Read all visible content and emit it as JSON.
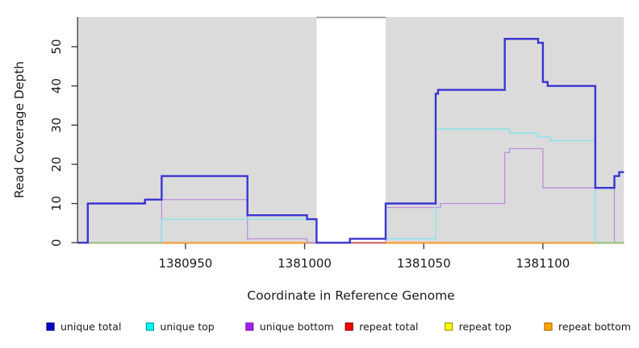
{
  "chart_data": {
    "type": "line",
    "subtype": "step-coverage",
    "title": "",
    "xlabel": "Coordinate in Reference Genome",
    "ylabel": "Read Coverage Depth",
    "x_domain": [
      1380905,
      1381134
    ],
    "y_domain": [
      0,
      57.6
    ],
    "x_ticks": [
      1380950,
      1381000,
      1381050,
      1381100
    ],
    "y_ticks": [
      0,
      10,
      20,
      30,
      40,
      50
    ],
    "grid": false,
    "legend_position": "bottom",
    "panel_bands": [
      {
        "from": 1380905,
        "to": 1381005
      },
      {
        "from": 1381034,
        "to": 1381134
      }
    ],
    "band_color": "#DBDBDB",
    "gap_border_color": "#8F8F8F",
    "axis_color": "#404040",
    "series": [
      {
        "name": "unique total",
        "legend_fill": "#0000CD",
        "legend_edge": "#00008B",
        "line_color": "#3A35D1",
        "line_width": 2.4,
        "points": [
          [
            1380905,
            0
          ],
          [
            1380909,
            10
          ],
          [
            1380933,
            11
          ],
          [
            1380940,
            17
          ],
          [
            1380976,
            7
          ],
          [
            1381001,
            6
          ],
          [
            1381005,
            0
          ],
          [
            1381019,
            1
          ],
          [
            1381034,
            10
          ],
          [
            1381055,
            38
          ],
          [
            1381056,
            39
          ],
          [
            1381084,
            52
          ],
          [
            1381098,
            51
          ],
          [
            1381100,
            41
          ],
          [
            1381102,
            40
          ],
          [
            1381122,
            14
          ],
          [
            1381130,
            17
          ],
          [
            1381132,
            18
          ],
          [
            1381134,
            18
          ]
        ]
      },
      {
        "name": "unique top",
        "legend_fill": "#00FFFF",
        "legend_edge": "#009AA6",
        "line_color": "#7FE6EC",
        "line_width": 1.3,
        "points": [
          [
            1380905,
            0
          ],
          [
            1380940,
            6
          ],
          [
            1381005,
            0
          ],
          [
            1381019,
            1
          ],
          [
            1381055,
            29
          ],
          [
            1381086,
            28
          ],
          [
            1381098,
            27
          ],
          [
            1381103,
            26
          ],
          [
            1381122,
            0
          ],
          [
            1381134,
            0
          ]
        ]
      },
      {
        "name": "unique bottom",
        "legend_fill": "#A020F0",
        "legend_edge": "#7D1BB5",
        "line_color": "#BD8EDD",
        "line_width": 1.3,
        "points": [
          [
            1380905,
            0
          ],
          [
            1380940,
            11
          ],
          [
            1380976,
            1
          ],
          [
            1381001,
            0
          ],
          [
            1381034,
            9
          ],
          [
            1381057,
            10
          ],
          [
            1381084,
            23
          ],
          [
            1381086,
            24
          ],
          [
            1381100,
            14
          ],
          [
            1381130,
            0
          ],
          [
            1381134,
            0
          ]
        ]
      },
      {
        "name": "repeat total",
        "legend_fill": "#FF0000",
        "legend_edge": "#8B0000",
        "line_color": "#E8413C",
        "line_width": 1.6,
        "points": [
          [
            1380905,
            0
          ],
          [
            1381134,
            0
          ]
        ]
      },
      {
        "name": "repeat top",
        "legend_fill": "#FFFF00",
        "legend_edge": "#9A9A00",
        "line_color": "#F5E642",
        "line_width": 1.6,
        "points": [
          [
            1380905,
            0
          ],
          [
            1381134,
            0
          ]
        ]
      },
      {
        "name": "repeat bottom",
        "legend_fill": "#FFA500",
        "legend_edge": "#B36B00",
        "line_color": "#FF9D24",
        "line_width": 1.8,
        "points": [
          [
            1380905,
            0
          ],
          [
            1381134,
            0
          ]
        ]
      }
    ],
    "baseline_overlays": [
      {
        "from": 1380905,
        "to": 1380940,
        "color": "#84CA90",
        "width": 1.6
      },
      {
        "from": 1381019,
        "to": 1381034,
        "color": "#D0506A",
        "width": 1.6
      },
      {
        "from": 1381122,
        "to": 1381134,
        "color": "#84CA90",
        "width": 1.6
      }
    ]
  }
}
